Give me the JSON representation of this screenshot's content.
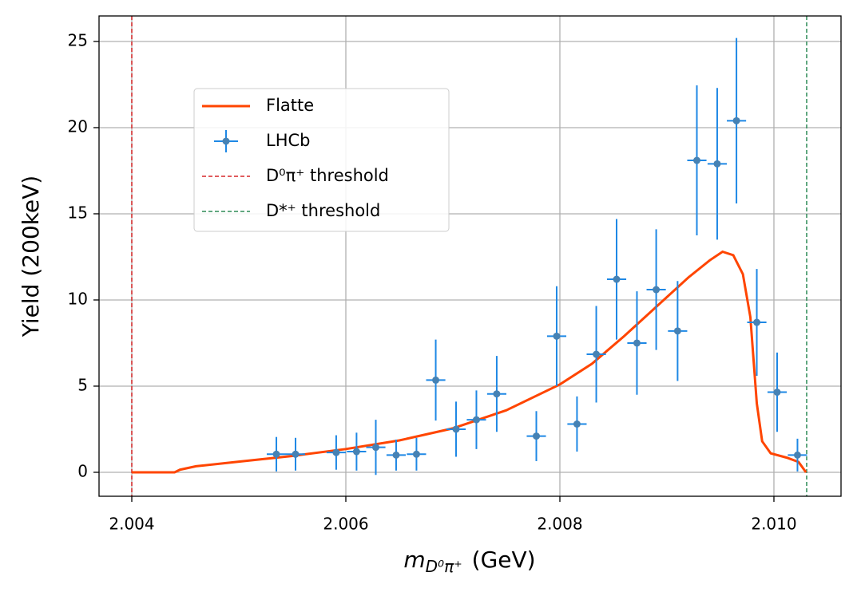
{
  "chart_data": {
    "type": "errorbar",
    "x_label": {
      "symbol": "m",
      "subscript": "D⁰π⁺",
      "unit": "(GeV)"
    },
    "y_label": "Yield (200keV)",
    "xlim": [
      2.003694,
      2.010627
    ],
    "ylim": [
      -1.39,
      26.48
    ],
    "xticks": [
      2.004,
      2.006,
      2.008,
      {
        "value": 2.01,
        "label": "2.010"
      }
    ],
    "yticks": [
      0,
      5,
      10,
      15,
      20,
      25
    ],
    "grid": true,
    "legend": "upper left",
    "series": [
      {
        "name": "Flatte",
        "kind": "line",
        "color": "#ff4500",
        "x": [
          2.004,
          2.0044,
          2.00445,
          2.0046,
          2.005,
          2.0055,
          2.006,
          2.0065,
          2.007,
          2.0075,
          2.008,
          2.0083,
          2.0086,
          2.0089,
          2.0092,
          2.0094,
          2.00952,
          2.00962,
          2.00971,
          2.00978,
          2.00984,
          2.00989,
          2.00997,
          2.01012,
          2.01023,
          2.0103
        ],
        "values": [
          0,
          0,
          0.15,
          0.35,
          0.62,
          0.95,
          1.35,
          1.85,
          2.55,
          3.6,
          5.1,
          6.3,
          7.9,
          9.6,
          11.3,
          12.3,
          12.8,
          12.6,
          11.5,
          9,
          4,
          1.8,
          1.1,
          0.85,
          0.6,
          0
        ]
      },
      {
        "name": "LHCb",
        "kind": "errorbar",
        "color": "#1e88e5",
        "marker_color": "#4682b4",
        "xerr": 9e-05,
        "x": [
          2.005351,
          2.00553,
          2.00591,
          2.0061,
          2.00628,
          2.00647,
          2.00666,
          2.00684,
          2.00703,
          2.00722,
          2.00741,
          2.00778,
          2.00797,
          2.00816,
          2.00834,
          2.00853,
          2.00872,
          2.0089,
          2.0091,
          2.00928,
          2.00947,
          2.00965,
          2.00984,
          2.01003,
          2.01022
        ],
        "values": [
          1.05,
          1.05,
          1.15,
          1.2,
          1.45,
          1.0,
          1.05,
          5.35,
          2.5,
          3.05,
          4.55,
          2.1,
          7.9,
          2.8,
          6.85,
          11.2,
          7.5,
          10.6,
          8.2,
          18.1,
          17.9,
          20.4,
          8.7,
          4.65,
          1.0
        ],
        "yerr": [
          1.0,
          0.95,
          1.0,
          1.1,
          1.6,
          0.9,
          0.95,
          2.35,
          1.6,
          1.7,
          2.2,
          1.45,
          2.9,
          1.6,
          2.8,
          3.5,
          3.0,
          3.5,
          2.9,
          4.35,
          4.4,
          4.8,
          3.1,
          2.3,
          0.95
        ]
      }
    ],
    "vlines": [
      {
        "name": "D⁰π⁺ threshold",
        "color": "#d62728",
        "x": 2.004
      },
      {
        "name": "D*⁺ threshold",
        "color": "#2e8b57",
        "x": 2.010306
      }
    ]
  }
}
